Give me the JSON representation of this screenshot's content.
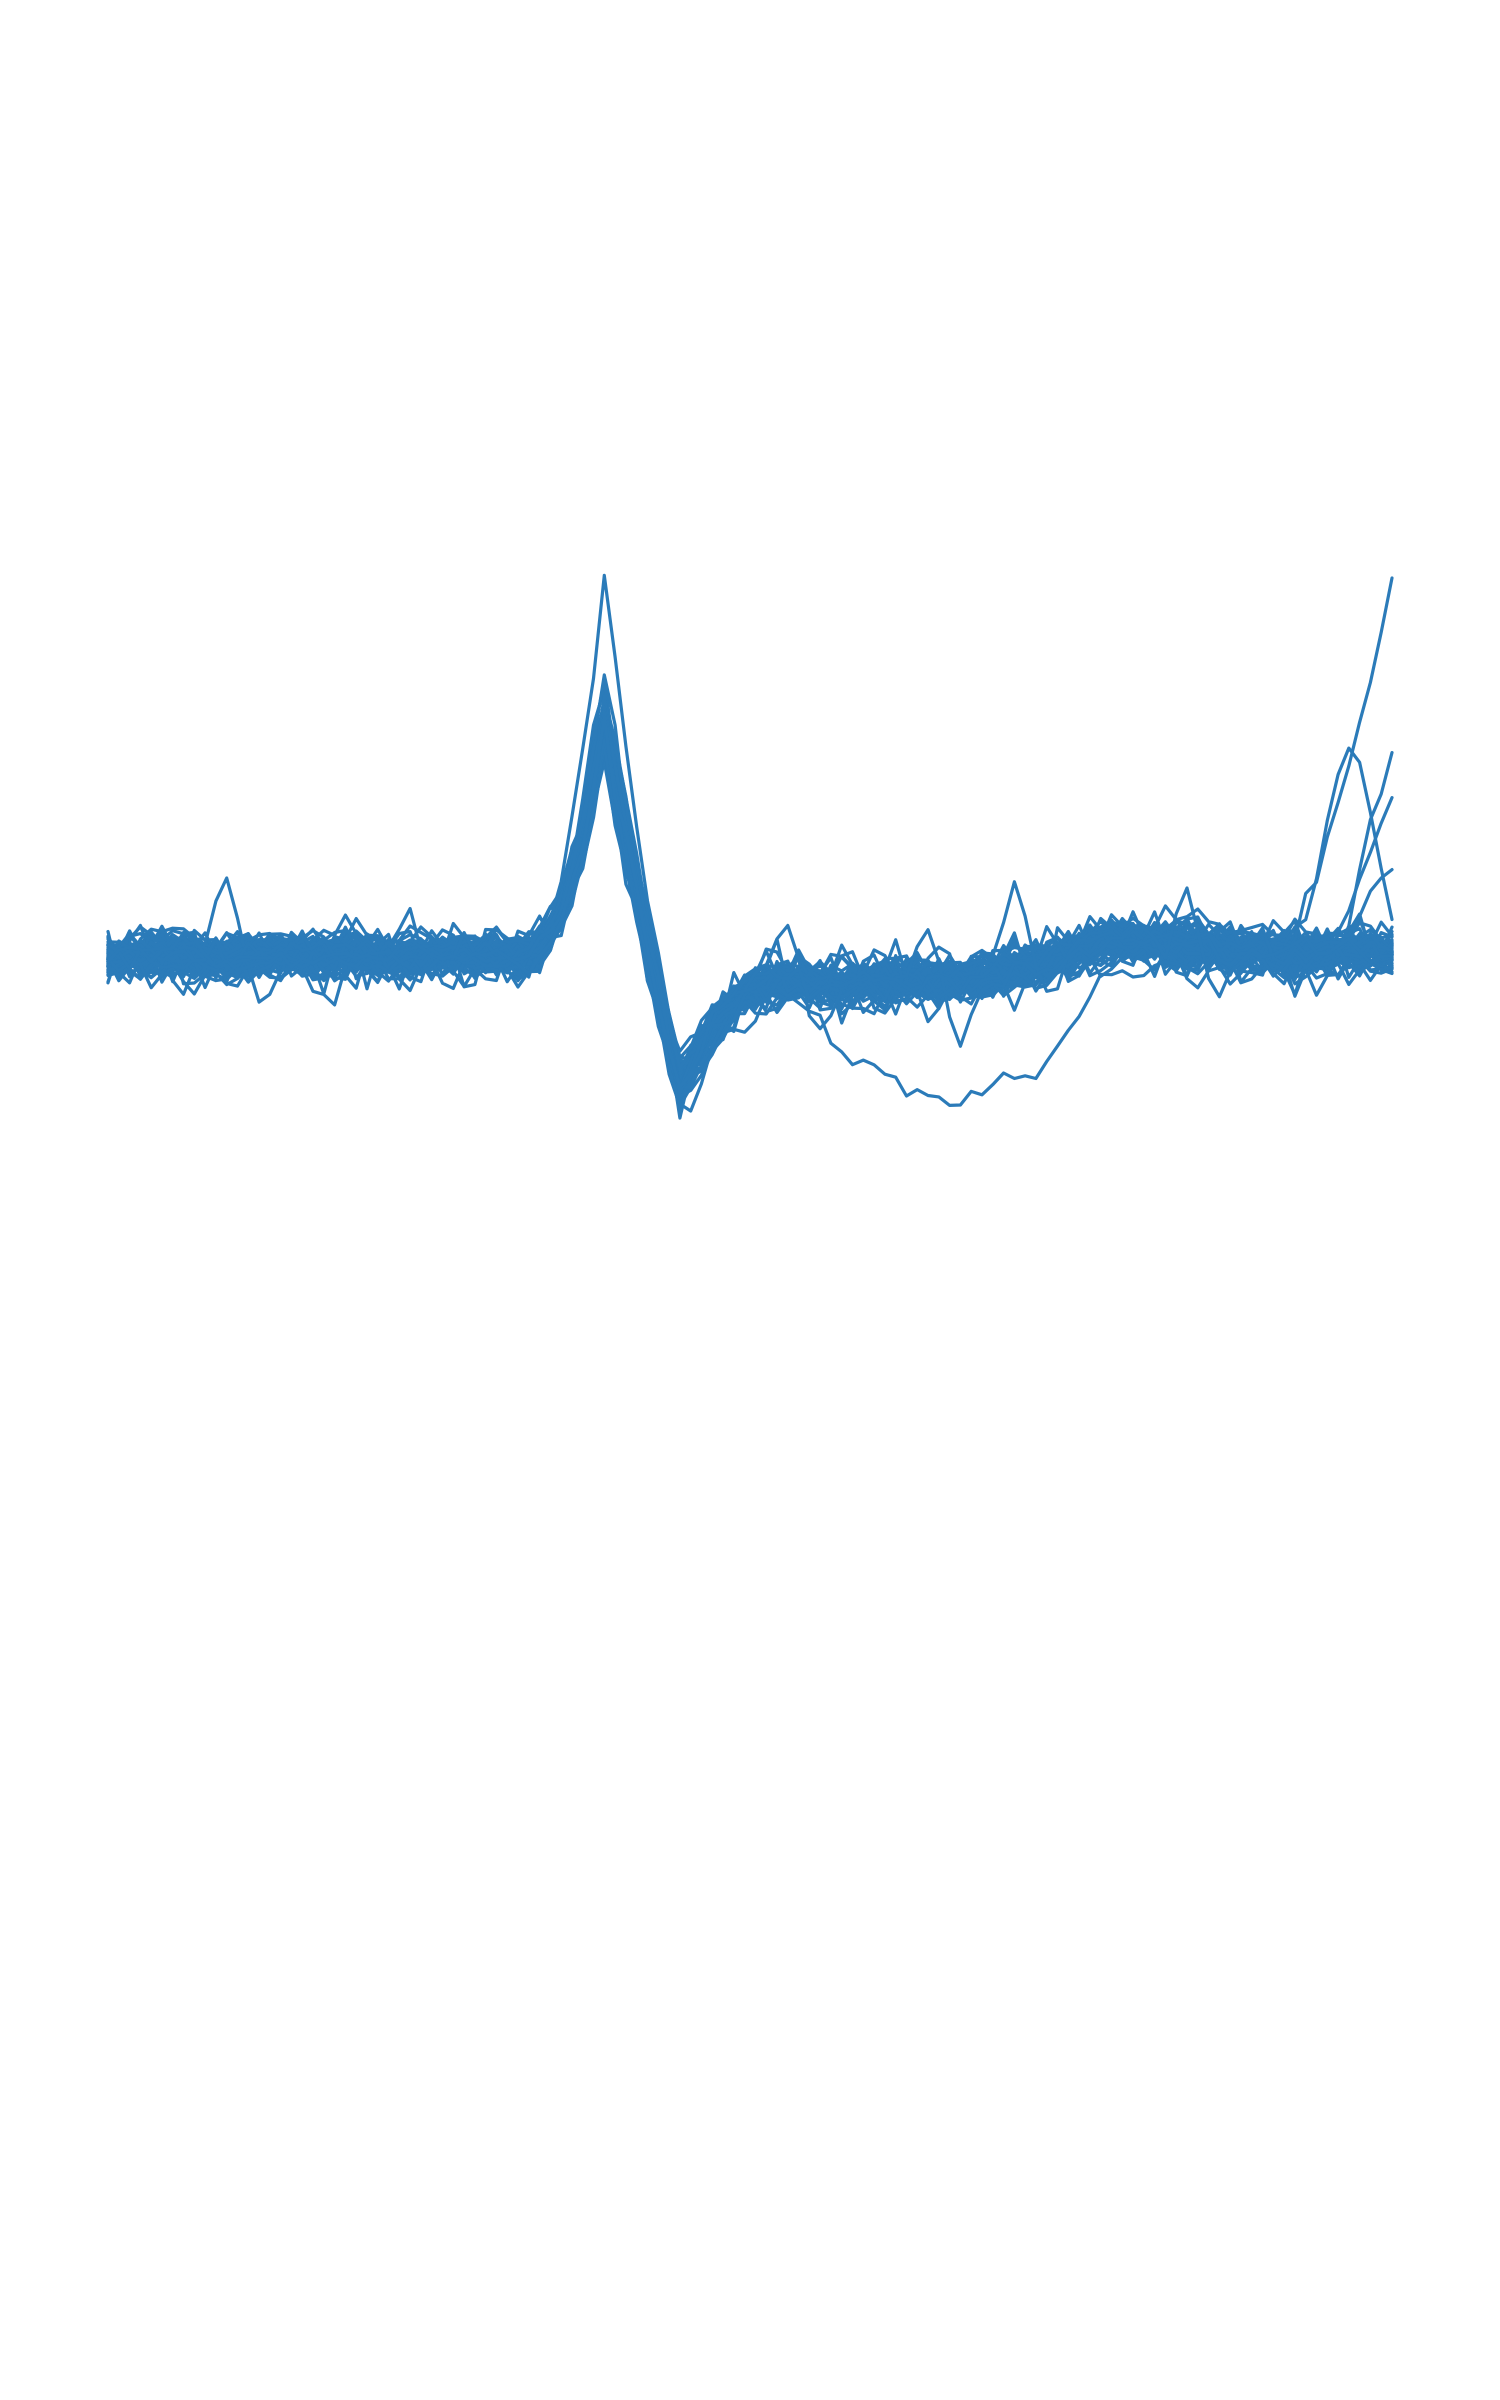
{
  "chart_data": {
    "type": "line",
    "title": "",
    "xlabel": "",
    "ylabel": "",
    "axes_visible": false,
    "grid": false,
    "legend": "none",
    "color": "#2b7bb9",
    "x": [
      0,
      1,
      2,
      3,
      4,
      5,
      6,
      7,
      8,
      9,
      10,
      11,
      12,
      13,
      14,
      15,
      16,
      17,
      18,
      19,
      20,
      21,
      22,
      23,
      24,
      25,
      26,
      27,
      28,
      29,
      30,
      31,
      32,
      33,
      34,
      35,
      36,
      37,
      38,
      39,
      40,
      41,
      42,
      43,
      44,
      45,
      46,
      47,
      48,
      49,
      50,
      51,
      52,
      53,
      54,
      55,
      56,
      57,
      58,
      59,
      60,
      61,
      62,
      63,
      64,
      65,
      66,
      67,
      68,
      69,
      70,
      71,
      72,
      73,
      74,
      75,
      76,
      77,
      78,
      79,
      80,
      81,
      82,
      83,
      84,
      85,
      86,
      87,
      88,
      89,
      90,
      91,
      92,
      93,
      94,
      95,
      96,
      97,
      98,
      99,
      100,
      101,
      102,
      103,
      104,
      105,
      106,
      107,
      108,
      109,
      110,
      111,
      112,
      113,
      114,
      115,
      116,
      117,
      118,
      119
    ],
    "xlim": [
      0,
      119
    ],
    "ylim": [
      -9,
      7.6
    ],
    "waveform": {
      "baseline_pre": 0,
      "rise_start_index": 38,
      "peak_index": 46,
      "peak_value": 4.9,
      "trough_index": 53,
      "trough_value": -2.6,
      "recovery_end_index": 62,
      "plateau_value": -0.5,
      "late_bump_index": 95,
      "late_bump_value": 0.3
    },
    "notable_traces": [
      {
        "kind": "large-spike",
        "peak_value": 7.6,
        "trough_value": -2.8,
        "end_value": 7.6
      },
      {
        "kind": "slow-dip",
        "dip_index": 79,
        "dip_value": -2.9
      },
      {
        "kind": "late-rise",
        "peak_index": 115,
        "peak_value": 4.0
      },
      {
        "kind": "late-rise",
        "peak_index": 119,
        "peak_value": 3.8
      },
      {
        "kind": "late-rise",
        "peak_index": 119,
        "peak_value": 3.0
      },
      {
        "kind": "late-rise",
        "peak_index": 119,
        "peak_value": 1.7
      },
      {
        "kind": "isolated-spike",
        "spike_index": 11,
        "spike_value": 1.8
      },
      {
        "kind": "isolated-spike",
        "spike_index": 63,
        "spike_value": 1.2
      },
      {
        "kind": "isolated-spike",
        "spike_index": 76,
        "spike_value": 1.1
      },
      {
        "kind": "isolated-spike",
        "spike_index": 84,
        "spike_value": 1.8
      },
      {
        "kind": "isolated-spike",
        "spike_index": 100,
        "spike_value": 1.3
      }
    ],
    "trace_count": 60
  }
}
